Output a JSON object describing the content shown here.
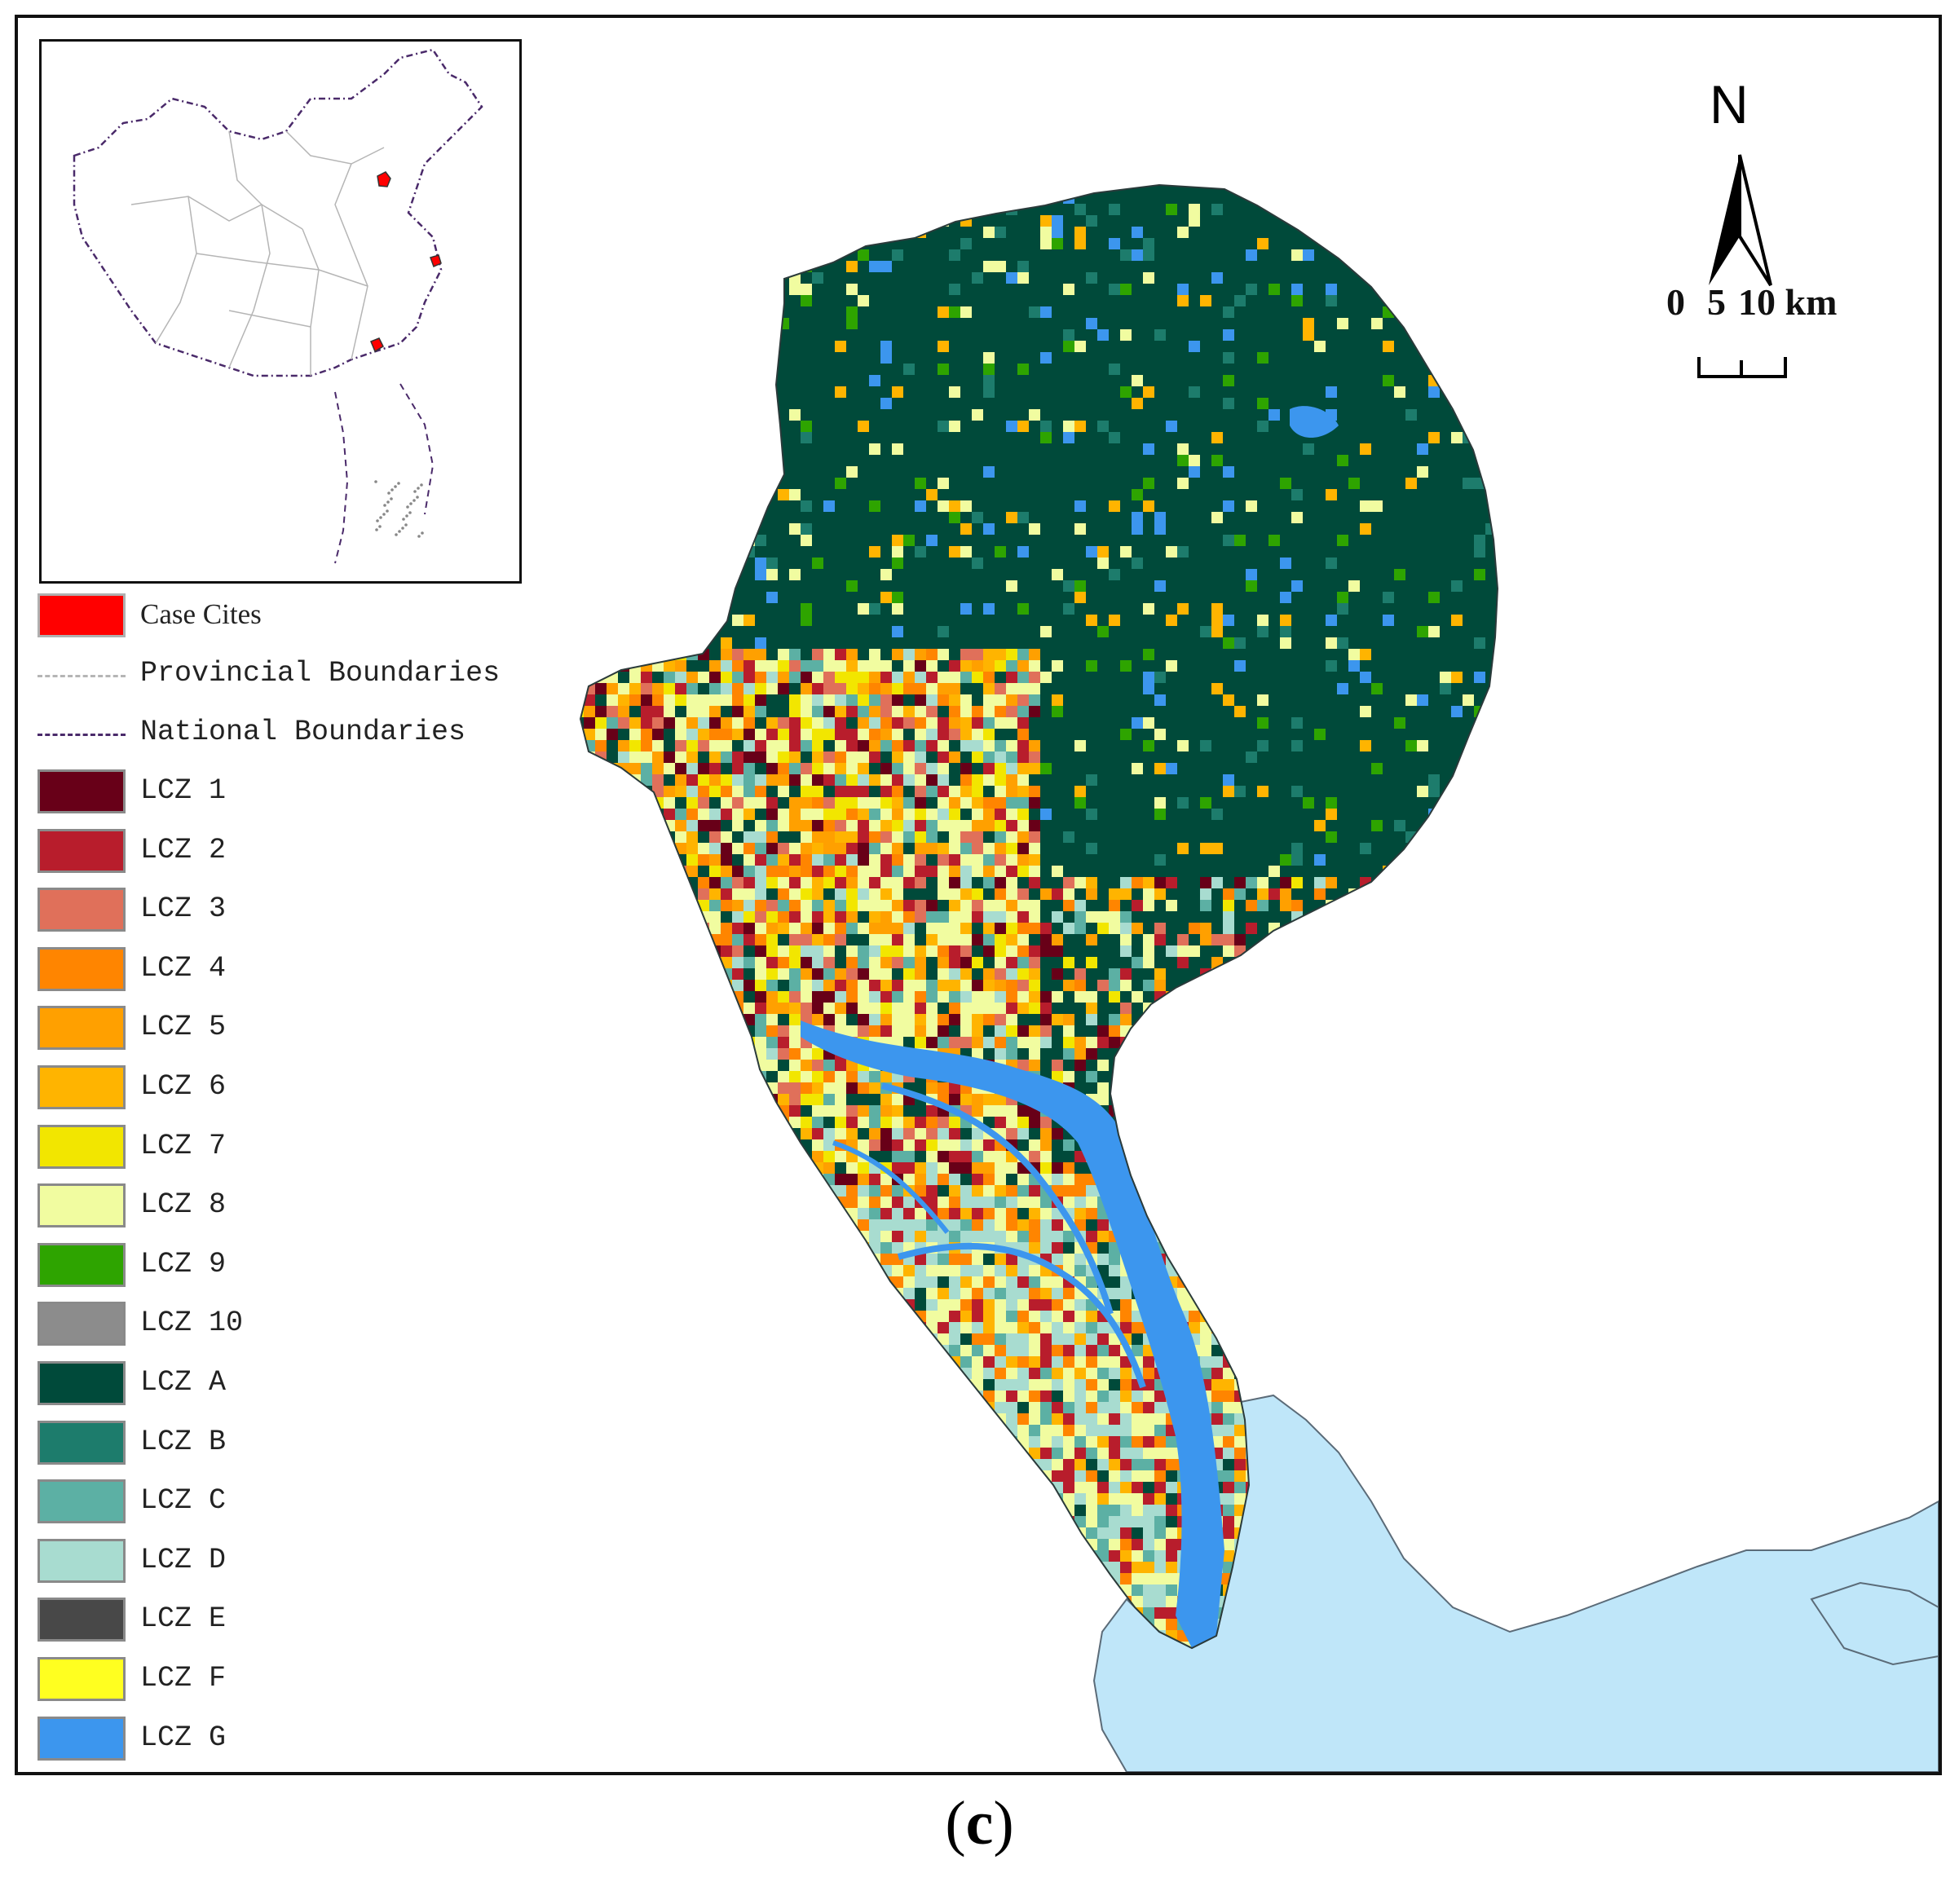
{
  "legend": {
    "case_cities": {
      "label": "Case Cites",
      "color": "#ff0000"
    },
    "provincial": {
      "label": "Provincial Boundaries",
      "color": "#b5b5b5"
    },
    "national": {
      "label": "National Boundaries",
      "color": "#4a2a6a"
    },
    "lcz": [
      {
        "label": "LCZ 1",
        "color": "#680018"
      },
      {
        "label": "LCZ 2",
        "color": "#b81d2c"
      },
      {
        "label": "LCZ 3",
        "color": "#e0705a"
      },
      {
        "label": "LCZ 4",
        "color": "#ff8500"
      },
      {
        "label": "LCZ 5",
        "color": "#ffa000"
      },
      {
        "label": "LCZ 6",
        "color": "#ffb400"
      },
      {
        "label": "LCZ 7",
        "color": "#f2e600"
      },
      {
        "label": "LCZ 8",
        "color": "#f1fca0"
      },
      {
        "label": "LCZ 9",
        "color": "#2ea400"
      },
      {
        "label": "LCZ 10",
        "color": "#8c8c8c"
      },
      {
        "label": "LCZ A",
        "color": "#004a3a"
      },
      {
        "label": "LCZ B",
        "color": "#1d7c6c"
      },
      {
        "label": "LCZ C",
        "color": "#5cb0a4"
      },
      {
        "label": "LCZ D",
        "color": "#a8dcd0"
      },
      {
        "label": "LCZ E",
        "color": "#484848"
      },
      {
        "label": "LCZ F",
        "color": "#ffff20"
      },
      {
        "label": "LCZ G",
        "color": "#3c96ee"
      }
    ]
  },
  "north_arrow": {
    "letter": "N"
  },
  "scale_bar": {
    "labels": [
      "0",
      "5",
      "10 km"
    ]
  },
  "sea_color": "#bfe6f9",
  "caption": {
    "open": "(",
    "letter": "c",
    "close": ")"
  }
}
